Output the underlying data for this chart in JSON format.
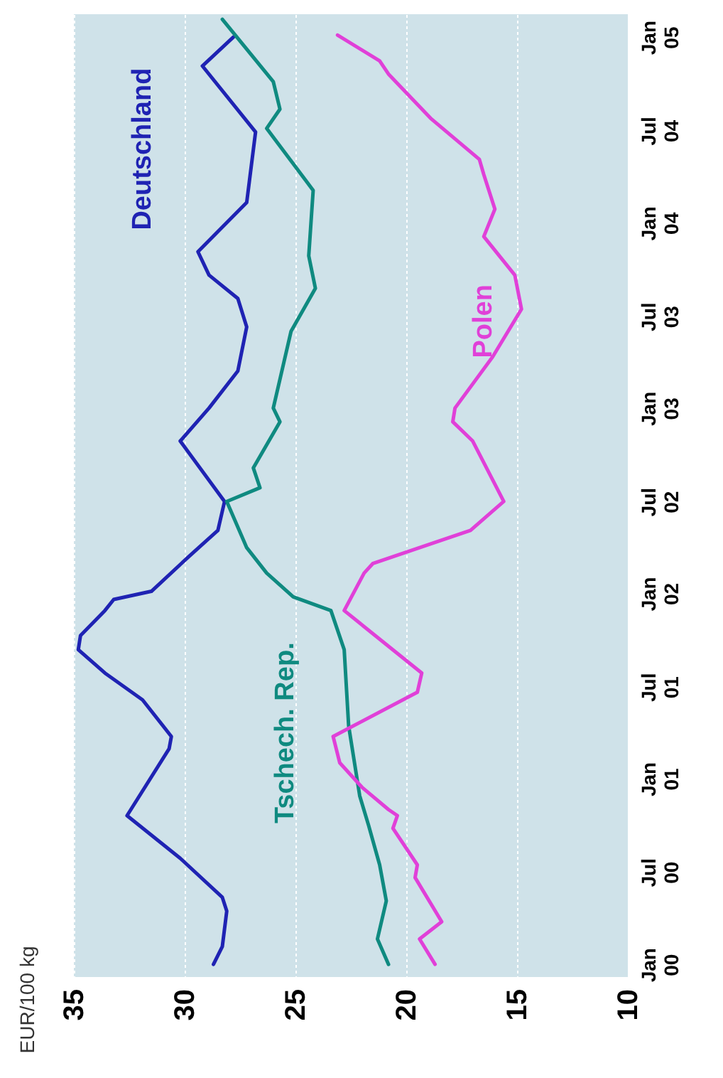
{
  "chart_data": {
    "type": "line",
    "orientation": "horizontal",
    "ylabel": "EUR/100 kg",
    "ylim": [
      "1999-12-07",
      "2005-02-15"
    ],
    "xlim": [
      35,
      10
    ],
    "xticks": [
      35,
      30,
      25,
      20,
      15,
      10
    ],
    "yticks": [
      {
        "value": "2000-01-01",
        "label": "Jan 00"
      },
      {
        "value": "2000-07-01",
        "label": "Jul 00"
      },
      {
        "value": "2001-01-01",
        "label": "Jan 01"
      },
      {
        "value": "2001-07-01",
        "label": "Jul 01"
      },
      {
        "value": "2002-01-01",
        "label": "Jan 02"
      },
      {
        "value": "2002-07-01",
        "label": "Jul 02"
      },
      {
        "value": "2003-01-01",
        "label": "Jan 03"
      },
      {
        "value": "2003-07-01",
        "label": "Jul 03"
      },
      {
        "value": "2004-01-01",
        "label": "Jan 04"
      },
      {
        "value": "2004-07-01",
        "label": "Jul 04"
      },
      {
        "value": "2005-01-01",
        "label": "Jan 05"
      }
    ],
    "grid": "x",
    "series": [
      {
        "name": "Deutschland",
        "color": "#1f23b3",
        "x": [
          "2000-01-01",
          "2000-02-05",
          "2000-04-15",
          "2000-05-12",
          "2000-07-28",
          "2000-10-20",
          "2001-03-01",
          "2001-03-25",
          "2001-06-05",
          "2001-07-28",
          "2001-09-12",
          "2001-10-10",
          "2001-11-28",
          "2001-12-20",
          "2002-01-05",
          "2002-03-15",
          "2002-05-05",
          "2002-07-01",
          "2002-10-28",
          "2003-01-01",
          "2003-03-15",
          "2003-06-10",
          "2003-08-05",
          "2003-09-20",
          "2003-11-05",
          "2004-02-10",
          "2004-06-28",
          "2004-11-05",
          "2005-01-01"
        ],
        "values": [
          28.7,
          28.3,
          28.1,
          28.3,
          30.2,
          32.6,
          30.7,
          30.6,
          31.9,
          33.6,
          34.8,
          34.7,
          33.6,
          33.2,
          31.5,
          29.8,
          28.5,
          28.2,
          30.2,
          28.9,
          27.6,
          27.2,
          27.6,
          28.9,
          29.4,
          27.2,
          26.8,
          29.2,
          27.8
        ]
      },
      {
        "name": "Tschech. Rep.",
        "color": "#0f8a80",
        "x": [
          "2000-01-01",
          "2000-02-20",
          "2000-05-05",
          "2000-07-15",
          "2000-10-01",
          "2000-11-28",
          "2001-04-15",
          "2001-09-12",
          "2001-11-28",
          "2001-12-25",
          "2002-02-10",
          "2002-04-01",
          "2002-07-01",
          "2002-07-28",
          "2002-09-05",
          "2002-12-05",
          "2003-01-01",
          "2003-06-01",
          "2003-08-25",
          "2003-10-28",
          "2004-03-05",
          "2004-07-05",
          "2004-08-12",
          "2004-10-05",
          "2005-02-05"
        ],
        "values": [
          20.8,
          21.3,
          20.9,
          21.2,
          21.7,
          22.1,
          22.6,
          22.8,
          23.4,
          25.1,
          26.3,
          27.2,
          28.1,
          26.6,
          26.9,
          25.7,
          26.0,
          25.2,
          24.1,
          24.4,
          24.2,
          26.3,
          25.7,
          26.0,
          28.3
        ]
      },
      {
        "name": "Polen",
        "color": "#e040d8",
        "x": [
          "2000-01-01",
          "2000-02-20",
          "2000-03-25",
          "2000-06-20",
          "2000-07-15",
          "2000-09-25",
          "2000-10-20",
          "2000-11-01",
          "2000-12-15",
          "2001-02-01",
          "2001-03-25",
          "2001-06-20",
          "2001-07-28",
          "2001-11-28",
          "2002-02-10",
          "2002-03-01",
          "2002-05-05",
          "2002-07-01",
          "2002-10-28",
          "2002-12-05",
          "2003-01-01",
          "2003-04-12",
          "2003-07-15",
          "2003-09-20",
          "2003-12-05",
          "2004-01-28",
          "2004-04-05",
          "2004-05-05",
          "2004-07-25",
          "2004-10-20",
          "2004-11-15",
          "2005-01-05"
        ],
        "values": [
          18.7,
          19.4,
          18.4,
          19.6,
          19.5,
          20.6,
          20.4,
          20.8,
          22.0,
          23.0,
          23.3,
          19.5,
          19.3,
          22.8,
          21.9,
          21.5,
          17.1,
          15.6,
          17.0,
          17.9,
          17.8,
          16.1,
          14.8,
          15.1,
          16.5,
          16.0,
          16.5,
          16.7,
          18.9,
          20.8,
          21.2,
          23.1
        ]
      }
    ]
  }
}
